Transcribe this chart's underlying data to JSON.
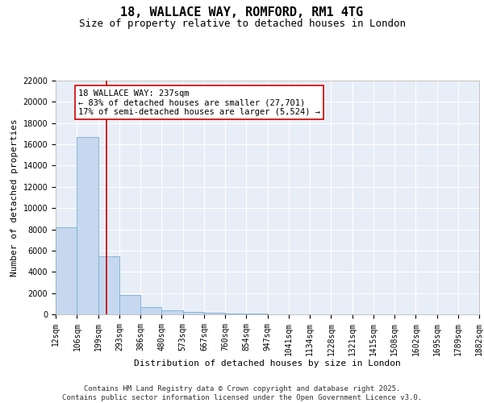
{
  "title": "18, WALLACE WAY, ROMFORD, RM1 4TG",
  "subtitle": "Size of property relative to detached houses in London",
  "xlabel": "Distribution of detached houses by size in London",
  "ylabel": "Number of detached properties",
  "bar_values": [
    8200,
    16700,
    5500,
    1800,
    700,
    400,
    200,
    150,
    100,
    50,
    30,
    20,
    10,
    5,
    3,
    2,
    1,
    1,
    0,
    0
  ],
  "bin_edges": [
    12,
    106,
    199,
    293,
    386,
    480,
    573,
    667,
    760,
    854,
    947,
    1041,
    1134,
    1228,
    1321,
    1415,
    1508,
    1602,
    1695,
    1789,
    1882
  ],
  "bar_color": "#c5d8ef",
  "bar_edgecolor": "#7aafd4",
  "background_color": "#e8eef7",
  "grid_color": "#ffffff",
  "red_line_x": 237,
  "red_line_color": "#cc0000",
  "annotation_text": "18 WALLACE WAY: 237sqm\n← 83% of detached houses are smaller (27,701)\n17% of semi-detached houses are larger (5,524) →",
  "annotation_box_color": "#ffffff",
  "annotation_box_edgecolor": "#cc0000",
  "ylim": [
    0,
    22000
  ],
  "yticks": [
    0,
    2000,
    4000,
    6000,
    8000,
    10000,
    12000,
    14000,
    16000,
    18000,
    20000,
    22000
  ],
  "footer_text": "Contains HM Land Registry data © Crown copyright and database right 2025.\nContains public sector information licensed under the Open Government Licence v3.0.",
  "title_fontsize": 11,
  "subtitle_fontsize": 9,
  "xlabel_fontsize": 8,
  "ylabel_fontsize": 8,
  "tick_fontsize": 7,
  "annotation_fontsize": 7.5,
  "footer_fontsize": 6.5
}
